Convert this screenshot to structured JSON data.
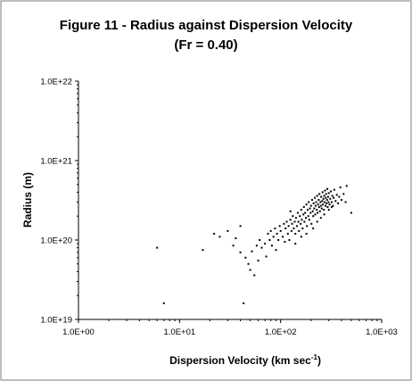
{
  "chart_data": {
    "type": "scatter",
    "title_line1": "Figure 11 - Radius against Dispersion Velocity",
    "title_line2": "(Fr = 0.40)",
    "xlabel_main": "Dispersion Velocity (km sec",
    "xlabel_sup": "-1",
    "xlabel_end": ")",
    "ylabel": "Radius (m)",
    "x_scale": "log",
    "y_scale": "log",
    "xlim": [
      1,
      1000
    ],
    "ylim": [
      1e+19,
      1e+22
    ],
    "x_ticks": [
      {
        "value": 1,
        "label": "1.0E+00"
      },
      {
        "value": 10,
        "label": "1.0E+01"
      },
      {
        "value": 100,
        "label": "1.0E+02"
      },
      {
        "value": 1000,
        "label": "1.0E+03"
      }
    ],
    "y_ticks": [
      {
        "value": 1e+19,
        "label": "1.0E+19"
      },
      {
        "value": 1e+20,
        "label": "1.0E+20"
      },
      {
        "value": 1e+21,
        "label": "1.0E+21"
      },
      {
        "value": 1e+22,
        "label": "1.0E+22"
      }
    ],
    "grid": false,
    "legend": "none",
    "marker": "small dot",
    "colors": {
      "point": "#000000",
      "axis": "#000000",
      "background": "#ffffff",
      "border": "#7f7f7f"
    },
    "series": [
      {
        "points": [
          [
            6.0,
            8e+19
          ],
          [
            7.0,
            1.6e+19
          ],
          [
            43,
            1.6e+19
          ],
          [
            17,
            7.5e+19
          ],
          [
            22,
            1.2e+20
          ],
          [
            25,
            1.1e+20
          ],
          [
            30,
            1.3e+20
          ],
          [
            34,
            8.5e+19
          ],
          [
            36,
            1.05e+20
          ],
          [
            40,
            1.5e+20
          ],
          [
            40,
            7e+19
          ],
          [
            45,
            6e+19
          ],
          [
            50,
            4.2e+19
          ],
          [
            55,
            3.6e+19
          ],
          [
            48,
            5e+19
          ],
          [
            52,
            7.2e+19
          ],
          [
            58,
            8.5e+19
          ],
          [
            60,
            5.5e+19
          ],
          [
            62,
            1e+20
          ],
          [
            65,
            8e+19
          ],
          [
            70,
            9e+19
          ],
          [
            72,
            6.2e+19
          ],
          [
            75,
            1.2e+20
          ],
          [
            78,
            1e+20
          ],
          [
            80,
            1.3e+20
          ],
          [
            82,
            8.5e+19
          ],
          [
            85,
            1.1e+20
          ],
          [
            88,
            1.4e+20
          ],
          [
            90,
            7.5e+19
          ],
          [
            92,
            1.2e+20
          ],
          [
            95,
            1e+20
          ],
          [
            98,
            1.5e+20
          ],
          [
            100,
            1.3e+20
          ],
          [
            105,
            1.1e+20
          ],
          [
            108,
            1.6e+20
          ],
          [
            110,
            9.5e+19
          ],
          [
            112,
            1.4e+20
          ],
          [
            115,
            1.7e+20
          ],
          [
            118,
            1.2e+20
          ],
          [
            120,
            1.5e+20
          ],
          [
            122,
            1e+20
          ],
          [
            125,
            1.8e+20
          ],
          [
            128,
            1.3e+20
          ],
          [
            130,
            1.6e+20
          ],
          [
            132,
            2e+20
          ],
          [
            135,
            1.4e+20
          ],
          [
            138,
            1.7e+20
          ],
          [
            140,
            1.2e+20
          ],
          [
            142,
            1.9e+20
          ],
          [
            145,
            1.5e+20
          ],
          [
            148,
            2.2e+20
          ],
          [
            150,
            1.7e+20
          ],
          [
            152,
            1.3e+20
          ],
          [
            155,
            2e+20
          ],
          [
            158,
            1.6e+20
          ],
          [
            160,
            2.4e+20
          ],
          [
            162,
            1.8e+20
          ],
          [
            165,
            1.4e+20
          ],
          [
            168,
            2.1e+20
          ],
          [
            170,
            2.6e+20
          ],
          [
            172,
            1.7e+20
          ],
          [
            175,
            2.2e+20
          ],
          [
            178,
            1.9e+20
          ],
          [
            180,
            2.8e+20
          ],
          [
            182,
            1.5e+20
          ],
          [
            185,
            2.4e+20
          ],
          [
            188,
            2e+20
          ],
          [
            190,
            3e+20
          ],
          [
            192,
            1.8e+20
          ],
          [
            195,
            2.5e+20
          ],
          [
            198,
            2.2e+20
          ],
          [
            200,
            2.7e+20
          ],
          [
            202,
            1.6e+20
          ],
          [
            205,
            3.2e+20
          ],
          [
            208,
            2.3e+20
          ],
          [
            210,
            2e+20
          ],
          [
            212,
            2.9e+20
          ],
          [
            215,
            2.5e+20
          ],
          [
            218,
            3.4e+20
          ],
          [
            220,
            2.1e+20
          ],
          [
            222,
            2.7e+20
          ],
          [
            225,
            3e+20
          ],
          [
            228,
            2.4e+20
          ],
          [
            230,
            3.6e+20
          ],
          [
            232,
            2.2e+20
          ],
          [
            235,
            2.8e+20
          ],
          [
            238,
            3.2e+20
          ],
          [
            240,
            2.6e+20
          ],
          [
            242,
            3.8e+20
          ],
          [
            245,
            2.3e+20
          ],
          [
            248,
            3e+20
          ],
          [
            250,
            2.7e+20
          ],
          [
            252,
            3.5e+20
          ],
          [
            255,
            2.5e+20
          ],
          [
            258,
            3.1e+20
          ],
          [
            260,
            4e+20
          ],
          [
            262,
            2.8e+20
          ],
          [
            265,
            3.3e+20
          ],
          [
            268,
            2.4e+20
          ],
          [
            270,
            3.6e+20
          ],
          [
            272,
            3e+20
          ],
          [
            275,
            4.2e+20
          ],
          [
            278,
            2.7e+20
          ],
          [
            280,
            3.4e+20
          ],
          [
            282,
            3.8e+20
          ],
          [
            285,
            2.9e+20
          ],
          [
            288,
            3.2e+20
          ],
          [
            290,
            4.4e+20
          ],
          [
            292,
            2.6e+20
          ],
          [
            295,
            3.5e+20
          ],
          [
            298,
            3e+20
          ],
          [
            300,
            3.9e+20
          ],
          [
            305,
            2.8e+20
          ],
          [
            310,
            3.3e+20
          ],
          [
            315,
            4.1e+20
          ],
          [
            320,
            3e+20
          ],
          [
            325,
            3.6e+20
          ],
          [
            330,
            2.7e+20
          ],
          [
            335,
            3.4e+20
          ],
          [
            340,
            4.3e+20
          ],
          [
            350,
            3.1e+20
          ],
          [
            360,
            3.7e+20
          ],
          [
            370,
            2.9e+20
          ],
          [
            380,
            3.5e+20
          ],
          [
            390,
            4.6e+20
          ],
          [
            400,
            3.2e+20
          ],
          [
            420,
            3.8e+20
          ],
          [
            440,
            3e+20
          ],
          [
            500,
            2.2e+20
          ],
          [
            450,
            4.8e+20
          ],
          [
            180,
            1.2e+20
          ],
          [
            210,
            1.4e+20
          ],
          [
            230,
            1.7e+20
          ],
          [
            250,
            1.9e+20
          ],
          [
            270,
            2.1e+20
          ],
          [
            160,
            1.1e+20
          ],
          [
            140,
            9e+19
          ],
          [
            125,
            2.3e+20
          ],
          [
            300,
            2.4e+20
          ],
          [
            320,
            2.6e+20
          ]
        ]
      }
    ]
  }
}
